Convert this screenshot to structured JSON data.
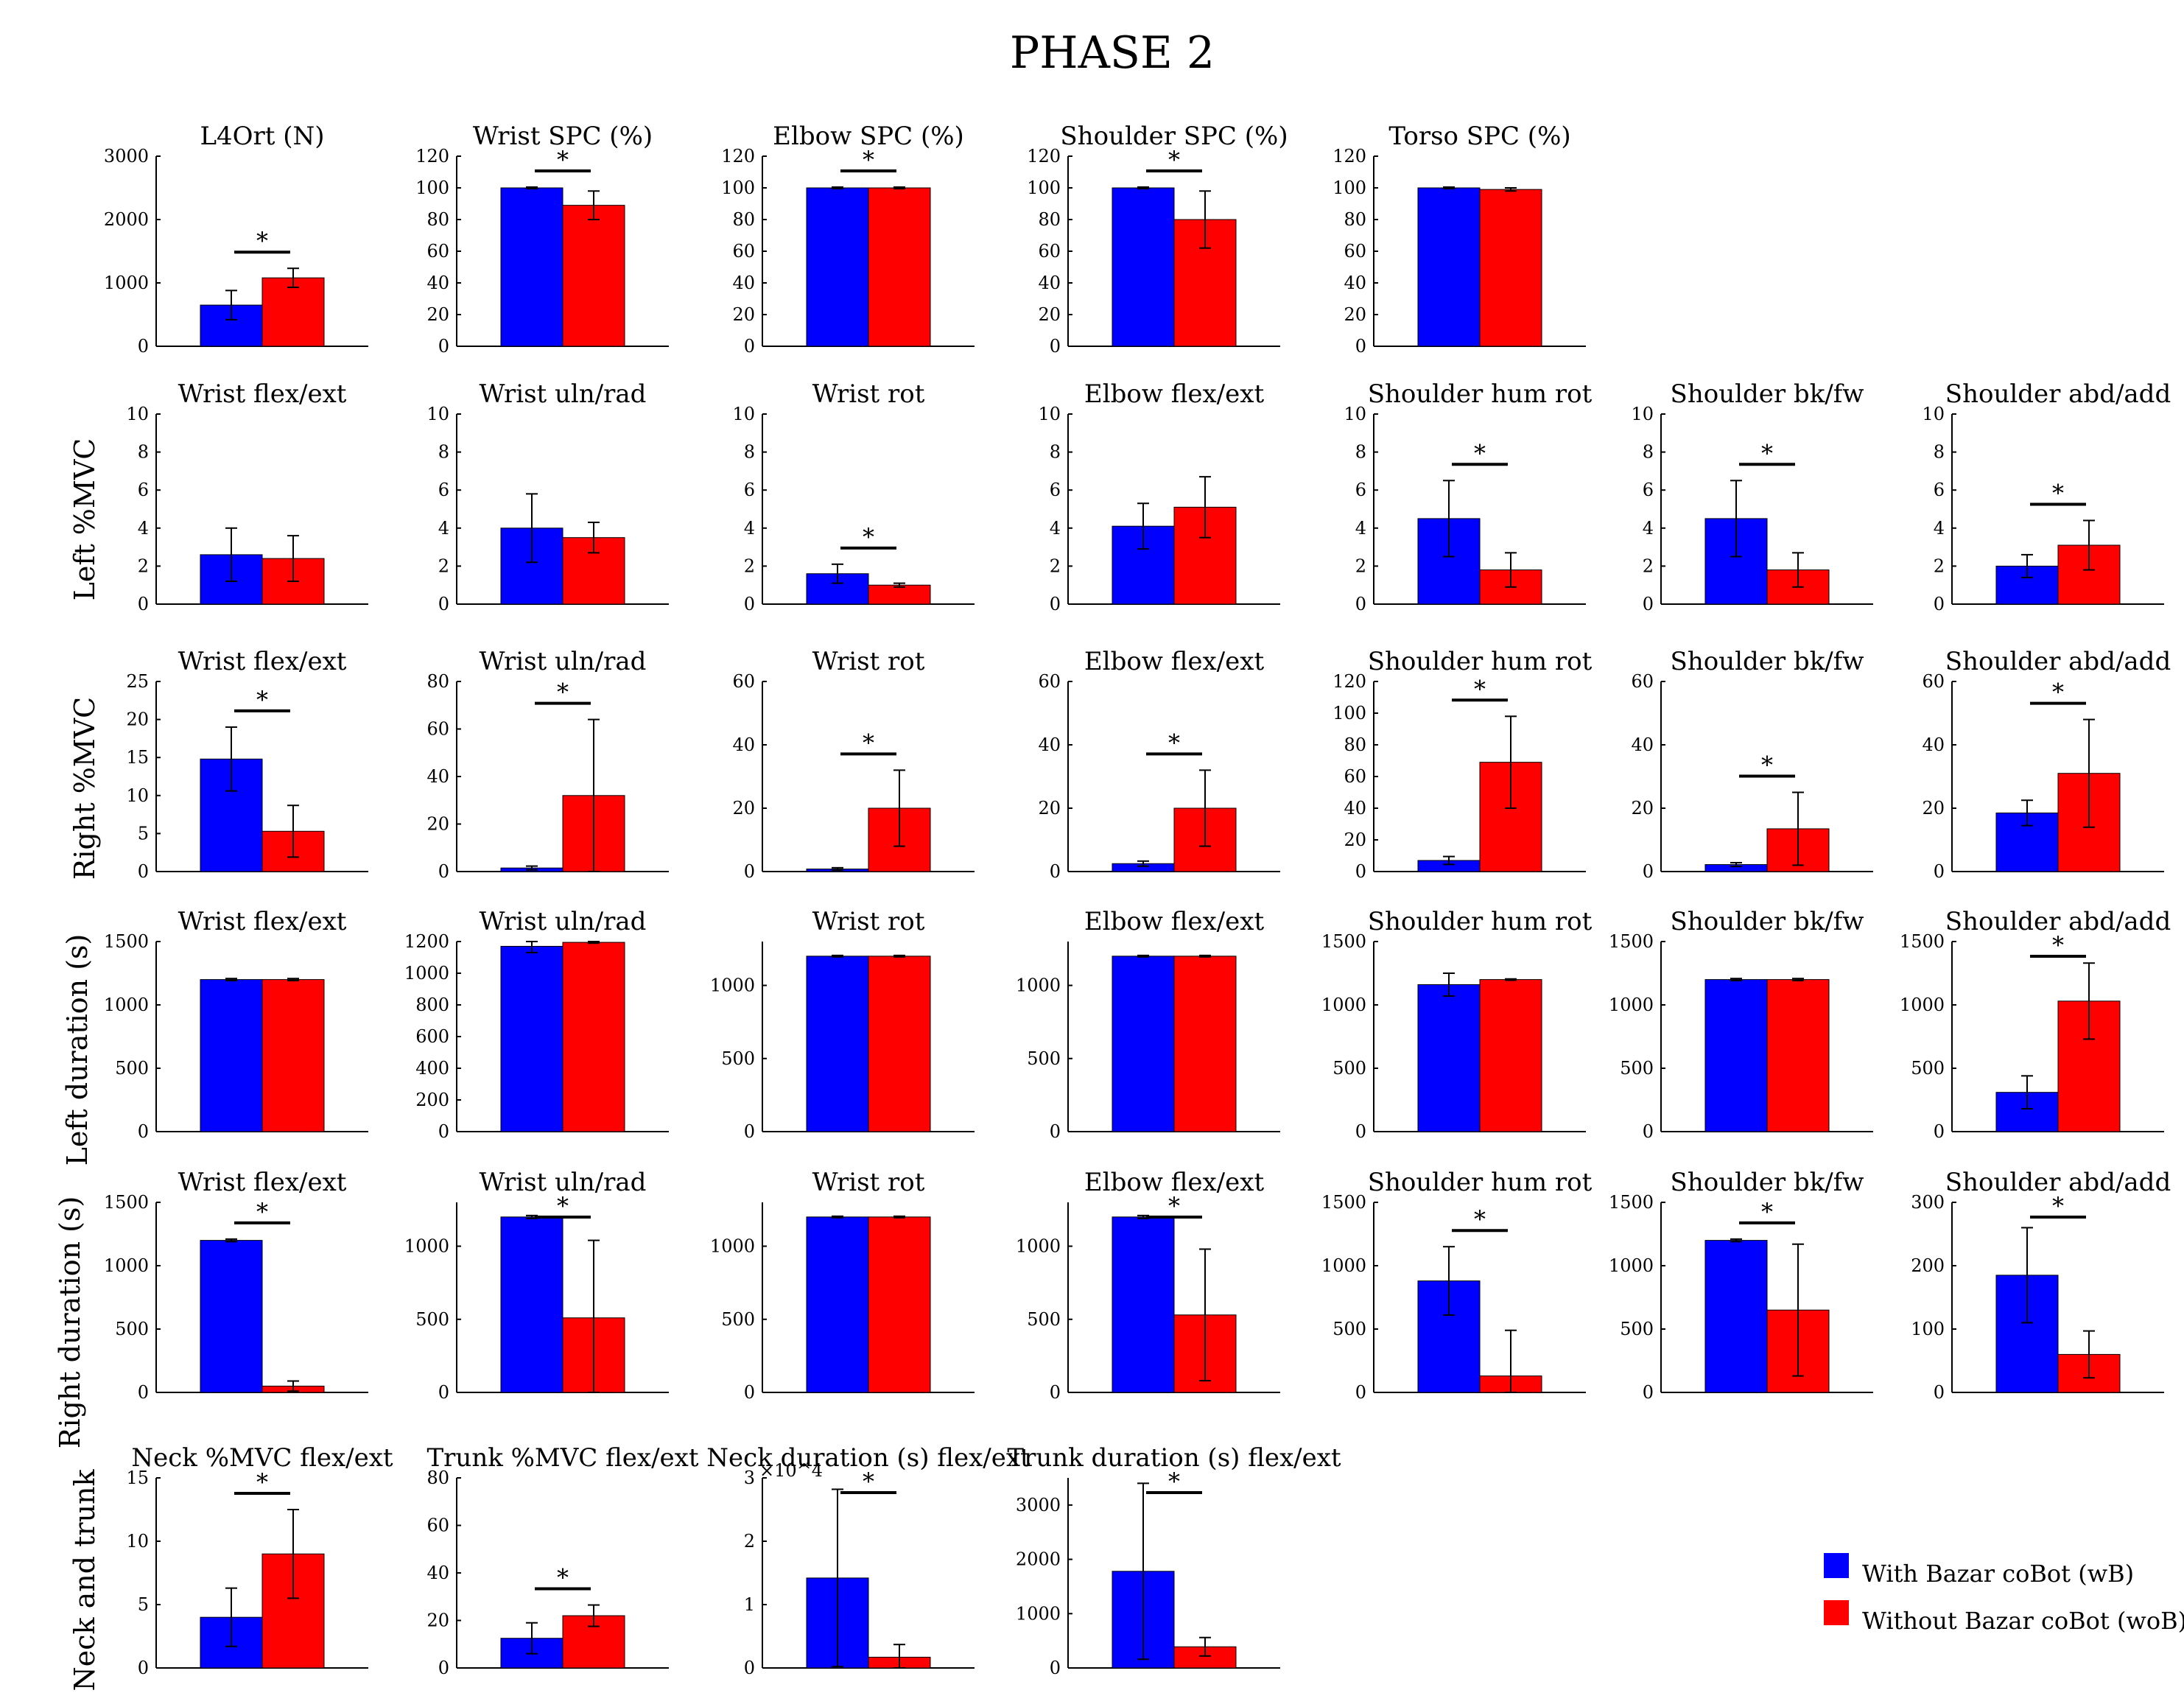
{
  "figure_title": "PHASE 2",
  "colors": {
    "wB": "#0000ff",
    "woB": "#ff0000"
  },
  "row_labels": [
    "Left %MVC",
    "Right %MVC",
    "Left duration (s)",
    "Right duration (s)",
    "Neck and trunk"
  ],
  "legend": {
    "wB": "With Bazar coBot (wB)",
    "woB": "Without Bazar coBot (woB)"
  },
  "chart_data": [
    {
      "type": "bar",
      "row": 0,
      "col": 0,
      "title": "L4Ort (N)",
      "yticks": [
        0,
        1000,
        2000,
        3000
      ],
      "ylim": [
        0,
        3000
      ],
      "series": [
        {
          "name": "wB",
          "value": 650,
          "err": 230
        },
        {
          "name": "woB",
          "value": 1080,
          "err": 150
        }
      ],
      "significant": true
    },
    {
      "type": "bar",
      "row": 0,
      "col": 1,
      "title": "Wrist SPC (%)",
      "yticks": [
        0,
        20,
        40,
        60,
        80,
        100,
        120
      ],
      "ylim": [
        0,
        120
      ],
      "series": [
        {
          "name": "wB",
          "value": 100,
          "err": 0.5
        },
        {
          "name": "woB",
          "value": 89,
          "err": 9
        }
      ],
      "significant": true
    },
    {
      "type": "bar",
      "row": 0,
      "col": 2,
      "title": "Elbow SPC (%)",
      "yticks": [
        0,
        20,
        40,
        60,
        80,
        100,
        120
      ],
      "ylim": [
        0,
        120
      ],
      "series": [
        {
          "name": "wB",
          "value": 100,
          "err": 0.5
        },
        {
          "name": "woB",
          "value": 100,
          "err": 0.5
        }
      ],
      "significant": true
    },
    {
      "type": "bar",
      "row": 0,
      "col": 3,
      "title": "Shoulder SPC (%)",
      "yticks": [
        0,
        20,
        40,
        60,
        80,
        100,
        120
      ],
      "ylim": [
        0,
        120
      ],
      "series": [
        {
          "name": "wB",
          "value": 100,
          "err": 0.5
        },
        {
          "name": "woB",
          "value": 80,
          "err": 18
        }
      ],
      "significant": true
    },
    {
      "type": "bar",
      "row": 0,
      "col": 4,
      "title": "Torso SPC (%)",
      "yticks": [
        0,
        20,
        40,
        60,
        80,
        100,
        120
      ],
      "ylim": [
        0,
        120
      ],
      "series": [
        {
          "name": "wB",
          "value": 100,
          "err": 0.5
        },
        {
          "name": "woB",
          "value": 99,
          "err": 1
        }
      ],
      "significant": false
    },
    {
      "type": "bar",
      "row": 1,
      "col": 0,
      "title": "Wrist flex/ext",
      "yticks": [
        0,
        2,
        4,
        6,
        8,
        10
      ],
      "ylim": [
        0,
        10
      ],
      "series": [
        {
          "name": "wB",
          "value": 2.6,
          "err": 1.4
        },
        {
          "name": "woB",
          "value": 2.4,
          "err": 1.2
        }
      ],
      "significant": false
    },
    {
      "type": "bar",
      "row": 1,
      "col": 1,
      "title": "Wrist uln/rad",
      "yticks": [
        0,
        2,
        4,
        6,
        8,
        10
      ],
      "ylim": [
        0,
        10
      ],
      "series": [
        {
          "name": "wB",
          "value": 4.0,
          "err": 1.8
        },
        {
          "name": "woB",
          "value": 3.5,
          "err": 0.8
        }
      ],
      "significant": false
    },
    {
      "type": "bar",
      "row": 1,
      "col": 2,
      "title": "Wrist rot",
      "yticks": [
        0,
        2,
        4,
        6,
        8,
        10
      ],
      "ylim": [
        0,
        10
      ],
      "series": [
        {
          "name": "wB",
          "value": 1.6,
          "err": 0.5
        },
        {
          "name": "woB",
          "value": 1.0,
          "err": 0.1
        }
      ],
      "significant": true
    },
    {
      "type": "bar",
      "row": 1,
      "col": 3,
      "title": "Elbow flex/ext",
      "yticks": [
        0,
        2,
        4,
        6,
        8,
        10
      ],
      "ylim": [
        0,
        10
      ],
      "series": [
        {
          "name": "wB",
          "value": 4.1,
          "err": 1.2
        },
        {
          "name": "woB",
          "value": 5.1,
          "err": 1.6
        }
      ],
      "significant": false
    },
    {
      "type": "bar",
      "row": 1,
      "col": 4,
      "title": "Shoulder hum rot",
      "yticks": [
        0,
        2,
        4,
        6,
        8,
        10
      ],
      "ylim": [
        0,
        10
      ],
      "series": [
        {
          "name": "wB",
          "value": 4.5,
          "err": 2.0
        },
        {
          "name": "woB",
          "value": 1.8,
          "err": 0.9
        }
      ],
      "significant": true
    },
    {
      "type": "bar",
      "row": 1,
      "col": 5,
      "title": "Shoulder bk/fw",
      "yticks": [
        0,
        2,
        4,
        6,
        8,
        10
      ],
      "ylim": [
        0,
        10
      ],
      "series": [
        {
          "name": "wB",
          "value": 4.5,
          "err": 2.0
        },
        {
          "name": "woB",
          "value": 1.8,
          "err": 0.9
        }
      ],
      "significant": true
    },
    {
      "type": "bar",
      "row": 1,
      "col": 6,
      "title": "Shoulder abd/add",
      "yticks": [
        0,
        2,
        4,
        6,
        8,
        10
      ],
      "ylim": [
        0,
        10
      ],
      "series": [
        {
          "name": "wB",
          "value": 2.0,
          "err": 0.6
        },
        {
          "name": "woB",
          "value": 3.1,
          "err": 1.3
        }
      ],
      "significant": true
    },
    {
      "type": "bar",
      "row": 2,
      "col": 0,
      "title": "Wrist flex/ext",
      "yticks": [
        0,
        5,
        10,
        15,
        20,
        25
      ],
      "ylim": [
        0,
        25
      ],
      "series": [
        {
          "name": "wB",
          "value": 14.8,
          "err": 4.2
        },
        {
          "name": "woB",
          "value": 5.3,
          "err": 3.4
        }
      ],
      "significant": true
    },
    {
      "type": "bar",
      "row": 2,
      "col": 1,
      "title": "Wrist uln/rad",
      "yticks": [
        0,
        20,
        40,
        60,
        80
      ],
      "ylim": [
        0,
        80
      ],
      "series": [
        {
          "name": "wB",
          "value": 1.5,
          "err": 0.8
        },
        {
          "name": "woB",
          "value": 32,
          "err": 32
        }
      ],
      "significant": true
    },
    {
      "type": "bar",
      "row": 2,
      "col": 2,
      "title": "Wrist rot",
      "yticks": [
        0,
        20,
        40,
        60
      ],
      "ylim": [
        0,
        60
      ],
      "series": [
        {
          "name": "wB",
          "value": 0.8,
          "err": 0.4
        },
        {
          "name": "woB",
          "value": 20,
          "err": 12
        }
      ],
      "significant": true
    },
    {
      "type": "bar",
      "row": 2,
      "col": 3,
      "title": "Elbow flex/ext",
      "yticks": [
        0,
        20,
        40,
        60
      ],
      "ylim": [
        0,
        60
      ],
      "series": [
        {
          "name": "wB",
          "value": 2.5,
          "err": 0.8
        },
        {
          "name": "woB",
          "value": 20,
          "err": 12
        }
      ],
      "significant": true
    },
    {
      "type": "bar",
      "row": 2,
      "col": 4,
      "title": "Shoulder hum rot",
      "yticks": [
        0,
        20,
        40,
        60,
        80,
        100,
        120
      ],
      "ylim": [
        0,
        120
      ],
      "series": [
        {
          "name": "wB",
          "value": 7,
          "err": 2.5
        },
        {
          "name": "woB",
          "value": 69,
          "err": 29
        }
      ],
      "significant": true
    },
    {
      "type": "bar",
      "row": 2,
      "col": 5,
      "title": "Shoulder bk/fw",
      "yticks": [
        0,
        20,
        40,
        60
      ],
      "ylim": [
        0,
        60
      ],
      "series": [
        {
          "name": "wB",
          "value": 2.2,
          "err": 0.6
        },
        {
          "name": "woB",
          "value": 13.5,
          "err": 11.5
        }
      ],
      "significant": true
    },
    {
      "type": "bar",
      "row": 2,
      "col": 6,
      "title": "Shoulder abd/add",
      "yticks": [
        0,
        20,
        40,
        60
      ],
      "ylim": [
        0,
        60
      ],
      "series": [
        {
          "name": "wB",
          "value": 18.5,
          "err": 4
        },
        {
          "name": "woB",
          "value": 31,
          "err": 17
        }
      ],
      "significant": true
    },
    {
      "type": "bar",
      "row": 3,
      "col": 0,
      "title": "Wrist flex/ext",
      "yticks": [
        0,
        500,
        1000,
        1500
      ],
      "ylim": [
        0,
        1500
      ],
      "series": [
        {
          "name": "wB",
          "value": 1200,
          "err": 8
        },
        {
          "name": "woB",
          "value": 1200,
          "err": 8
        }
      ],
      "significant": false
    },
    {
      "type": "bar",
      "row": 3,
      "col": 1,
      "title": "Wrist uln/rad",
      "yticks": [
        0,
        200,
        400,
        600,
        800,
        1000,
        1200
      ],
      "ylim": [
        0,
        1200
      ],
      "series": [
        {
          "name": "wB",
          "value": 1170,
          "err": 40
        },
        {
          "name": "woB",
          "value": 1195,
          "err": 5
        }
      ],
      "significant": false
    },
    {
      "type": "bar",
      "row": 3,
      "col": 2,
      "title": "Wrist rot",
      "yticks": [
        0,
        500,
        1000
      ],
      "ylim": [
        0,
        1300
      ],
      "series": [
        {
          "name": "wB",
          "value": 1200,
          "err": 5
        },
        {
          "name": "woB",
          "value": 1200,
          "err": 5
        }
      ],
      "significant": false
    },
    {
      "type": "bar",
      "row": 3,
      "col": 3,
      "title": "Elbow flex/ext",
      "yticks": [
        0,
        500,
        1000
      ],
      "ylim": [
        0,
        1300
      ],
      "series": [
        {
          "name": "wB",
          "value": 1200,
          "err": 5
        },
        {
          "name": "woB",
          "value": 1200,
          "err": 5
        }
      ],
      "significant": false
    },
    {
      "type": "bar",
      "row": 3,
      "col": 4,
      "title": "Shoulder hum rot",
      "yticks": [
        0,
        500,
        1000,
        1500
      ],
      "ylim": [
        0,
        1500
      ],
      "series": [
        {
          "name": "wB",
          "value": 1160,
          "err": 90
        },
        {
          "name": "woB",
          "value": 1200,
          "err": 5
        }
      ],
      "significant": false
    },
    {
      "type": "bar",
      "row": 3,
      "col": 5,
      "title": "Shoulder bk/fw",
      "yticks": [
        0,
        500,
        1000,
        1500
      ],
      "ylim": [
        0,
        1500
      ],
      "series": [
        {
          "name": "wB",
          "value": 1200,
          "err": 8
        },
        {
          "name": "woB",
          "value": 1200,
          "err": 8
        }
      ],
      "significant": false
    },
    {
      "type": "bar",
      "row": 3,
      "col": 6,
      "title": "Shoulder abd/add",
      "yticks": [
        0,
        500,
        1000,
        1500
      ],
      "ylim": [
        0,
        1500
      ],
      "series": [
        {
          "name": "wB",
          "value": 310,
          "err": 130
        },
        {
          "name": "woB",
          "value": 1030,
          "err": 300
        }
      ],
      "significant": true
    },
    {
      "type": "bar",
      "row": 4,
      "col": 0,
      "title": "Wrist flex/ext",
      "yticks": [
        0,
        500,
        1000,
        1500
      ],
      "ylim": [
        0,
        1500
      ],
      "series": [
        {
          "name": "wB",
          "value": 1200,
          "err": 10
        },
        {
          "name": "woB",
          "value": 50,
          "err": 40
        }
      ],
      "significant": true
    },
    {
      "type": "bar",
      "row": 4,
      "col": 1,
      "title": "Wrist uln/rad",
      "yticks": [
        0,
        500,
        1000
      ],
      "ylim": [
        0,
        1300
      ],
      "series": [
        {
          "name": "wB",
          "value": 1200,
          "err": 10
        },
        {
          "name": "woB",
          "value": 510,
          "err": 530
        }
      ],
      "significant": true
    },
    {
      "type": "bar",
      "row": 4,
      "col": 2,
      "title": "Wrist rot",
      "yticks": [
        0,
        500,
        1000
      ],
      "ylim": [
        0,
        1300
      ],
      "series": [
        {
          "name": "wB",
          "value": 1200,
          "err": 5
        },
        {
          "name": "woB",
          "value": 1200,
          "err": 5
        }
      ],
      "significant": false
    },
    {
      "type": "bar",
      "row": 4,
      "col": 3,
      "title": "Elbow flex/ext",
      "yticks": [
        0,
        500,
        1000
      ],
      "ylim": [
        0,
        1300
      ],
      "series": [
        {
          "name": "wB",
          "value": 1200,
          "err": 10
        },
        {
          "name": "woB",
          "value": 530,
          "err": 450
        }
      ],
      "significant": true
    },
    {
      "type": "bar",
      "row": 4,
      "col": 4,
      "title": "Shoulder hum rot",
      "yticks": [
        0,
        500,
        1000,
        1500
      ],
      "ylim": [
        0,
        1500
      ],
      "series": [
        {
          "name": "wB",
          "value": 880,
          "err": 270
        },
        {
          "name": "woB",
          "value": 130,
          "err": 360
        }
      ],
      "significant": true
    },
    {
      "type": "bar",
      "row": 4,
      "col": 5,
      "title": "Shoulder bk/fw",
      "yticks": [
        0,
        500,
        1000,
        1500
      ],
      "ylim": [
        0,
        1500
      ],
      "series": [
        {
          "name": "wB",
          "value": 1200,
          "err": 10
        },
        {
          "name": "woB",
          "value": 650,
          "err": 520
        }
      ],
      "significant": true
    },
    {
      "type": "bar",
      "row": 4,
      "col": 6,
      "title": "Shoulder abd/add",
      "yticks": [
        0,
        100,
        200,
        300
      ],
      "ylim": [
        0,
        300
      ],
      "series": [
        {
          "name": "wB",
          "value": 185,
          "err": 75
        },
        {
          "name": "woB",
          "value": 60,
          "err": 37
        }
      ],
      "significant": true
    },
    {
      "type": "bar",
      "row": 5,
      "col": 0,
      "title": "Neck %MVC flex/ext",
      "yticks": [
        0,
        5,
        10,
        15
      ],
      "ylim": [
        0,
        15
      ],
      "series": [
        {
          "name": "wB",
          "value": 4.0,
          "err": 2.3
        },
        {
          "name": "woB",
          "value": 9.0,
          "err": 3.5
        }
      ],
      "significant": true
    },
    {
      "type": "bar",
      "row": 5,
      "col": 1,
      "title": "Trunk %MVC flex/ext",
      "yticks": [
        0,
        20,
        40,
        60,
        80
      ],
      "ylim": [
        0,
        80
      ],
      "series": [
        {
          "name": "wB",
          "value": 12.5,
          "err": 6.5
        },
        {
          "name": "woB",
          "value": 22,
          "err": 4.5
        }
      ],
      "significant": true
    },
    {
      "type": "bar",
      "row": 5,
      "col": 2,
      "title": "Neck duration (s) flex/ext",
      "yticks": [
        0,
        1,
        2,
        3
      ],
      "ylim": [
        0,
        3
      ],
      "scale_label": "×10^4",
      "series": [
        {
          "name": "wB",
          "value": 1.42,
          "err": 1.4
        },
        {
          "name": "woB",
          "value": 0.17,
          "err": 0.2
        }
      ],
      "significant": true
    },
    {
      "type": "bar",
      "row": 5,
      "col": 3,
      "title": "Trunk duration (s) flex/ext",
      "yticks": [
        0,
        1000,
        2000,
        3000
      ],
      "ylim": [
        0,
        3500
      ],
      "series": [
        {
          "name": "wB",
          "value": 1780,
          "err": 1620
        },
        {
          "name": "woB",
          "value": 390,
          "err": 170
        }
      ],
      "significant": true
    }
  ]
}
